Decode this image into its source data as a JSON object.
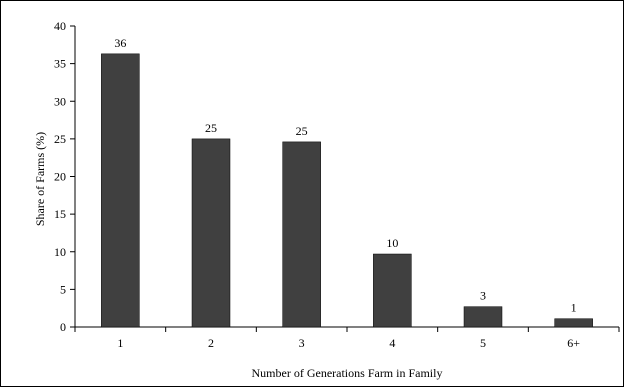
{
  "chart_data": {
    "type": "bar",
    "title": "",
    "xlabel": "Number of Generations Farm in Family",
    "ylabel": "Share of Farms (%)",
    "categories": [
      "1",
      "2",
      "3",
      "4",
      "5",
      "6+"
    ],
    "values": [
      36.3,
      25,
      24.6,
      9.7,
      2.7,
      1.1
    ],
    "data_labels": [
      "36",
      "25",
      "25",
      "10",
      "3",
      "1"
    ],
    "ylim": [
      0,
      40
    ],
    "yticks": [
      "0",
      "5",
      "10",
      "15",
      "20",
      "25",
      "30",
      "35",
      "40"
    ],
    "grid": false,
    "legend": "none",
    "bar_color": "#404040"
  }
}
